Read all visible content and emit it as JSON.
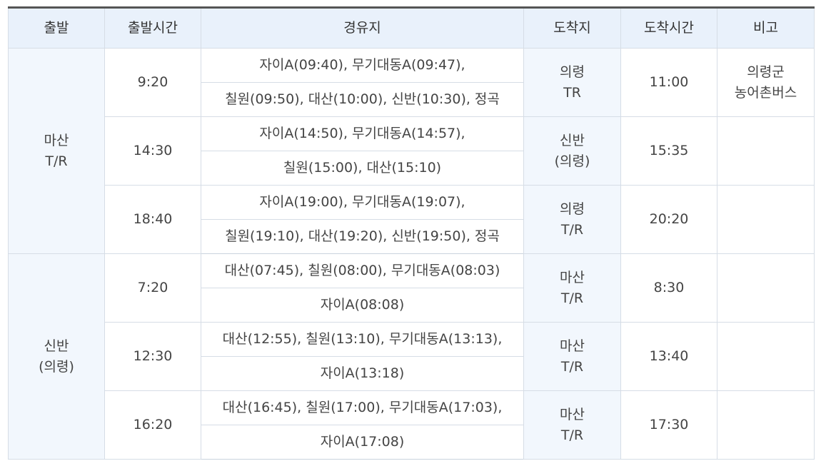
{
  "table": {
    "headers": [
      "출발",
      "출발시간",
      "경유지",
      "도착지",
      "도착시간",
      "비고"
    ],
    "groups": [
      {
        "depart": [
          "마산",
          "T/R"
        ],
        "trips": [
          {
            "time": "9:20",
            "via": [
              "자이A(09:40), 무기대동A(09:47),",
              "칠원(09:50), 대산(10:00), 신반(10:30), 정곡"
            ],
            "dest": [
              "의령",
              "TR"
            ],
            "arrival": "11:00",
            "note": [
              "의령군",
              "농어촌버스"
            ]
          },
          {
            "time": "14:30",
            "via": [
              "자이A(14:50), 무기대동A(14:57),",
              "칠원(15:00), 대산(15:10)"
            ],
            "dest": [
              "신반",
              "(의령)"
            ],
            "arrival": "15:35",
            "note": [
              "",
              ""
            ]
          },
          {
            "time": "18:40",
            "via": [
              "자이A(19:00), 무기대동A(19:07),",
              "칠원(19:10), 대산(19:20), 신반(19:50), 정곡"
            ],
            "dest": [
              "의령",
              "T/R"
            ],
            "arrival": "20:20",
            "note": [
              "",
              ""
            ]
          }
        ]
      },
      {
        "depart": [
          "신반",
          "(의령)"
        ],
        "trips": [
          {
            "time": "7:20",
            "via": [
              "대산(07:45), 칠원(08:00), 무기대동A(08:03)",
              "자이A(08:08)"
            ],
            "dest": [
              "마산",
              "T/R"
            ],
            "arrival": "8:30",
            "note": [
              "",
              ""
            ]
          },
          {
            "time": "12:30",
            "via": [
              "대산(12:55), 칠원(13:10), 무기대동A(13:13),",
              "자이A(13:18)"
            ],
            "dest": [
              "마산",
              "T/R"
            ],
            "arrival": "13:40",
            "note": [
              "",
              ""
            ]
          },
          {
            "time": "16:20",
            "via": [
              "대산(16:45), 칠원(17:00), 무기대동A(17:03),",
              "자이A(17:08)"
            ],
            "dest": [
              "마산",
              "T/R"
            ],
            "arrival": "17:30",
            "note": [
              "",
              ""
            ]
          }
        ]
      }
    ]
  }
}
